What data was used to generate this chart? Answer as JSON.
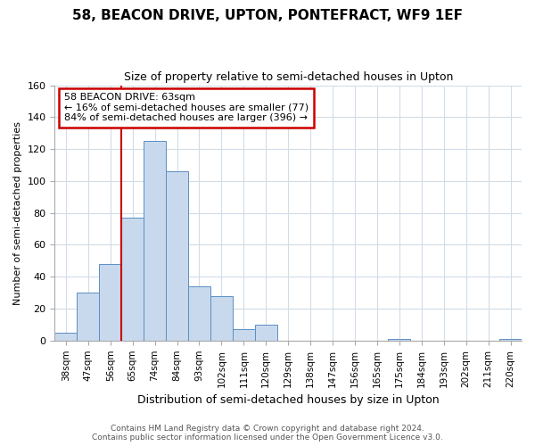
{
  "title_line1": "58, BEACON DRIVE, UPTON, PONTEFRACT, WF9 1EF",
  "title_line2": "Size of property relative to semi-detached houses in Upton",
  "xlabel": "Distribution of semi-detached houses by size in Upton",
  "ylabel": "Number of semi-detached properties",
  "bin_labels": [
    "38sqm",
    "47sqm",
    "56sqm",
    "65sqm",
    "74sqm",
    "84sqm",
    "93sqm",
    "102sqm",
    "111sqm",
    "120sqm",
    "129sqm",
    "138sqm",
    "147sqm",
    "156sqm",
    "165sqm",
    "175sqm",
    "184sqm",
    "193sqm",
    "202sqm",
    "211sqm",
    "220sqm"
  ],
  "bar_values": [
    5,
    30,
    48,
    77,
    125,
    106,
    34,
    28,
    7,
    10,
    0,
    0,
    0,
    0,
    0,
    1,
    0,
    0,
    0,
    0,
    1
  ],
  "bar_color": "#c9d9ed",
  "bar_edge_color": "#5a8fc3",
  "annotation_title": "58 BEACON DRIVE: 63sqm",
  "annotation_line1": "← 16% of semi-detached houses are smaller (77)",
  "annotation_line2": "84% of semi-detached houses are larger (396) →",
  "annotation_box_color": "#ffffff",
  "annotation_box_edge": "#cc0000",
  "property_line_color": "#cc0000",
  "ylim": [
    0,
    160
  ],
  "yticks": [
    0,
    20,
    40,
    60,
    80,
    100,
    120,
    140,
    160
  ],
  "footer_line1": "Contains HM Land Registry data © Crown copyright and database right 2024.",
  "footer_line2": "Contains public sector information licensed under the Open Government Licence v3.0.",
  "background_color": "#ffffff",
  "grid_color": "#d0dce8"
}
